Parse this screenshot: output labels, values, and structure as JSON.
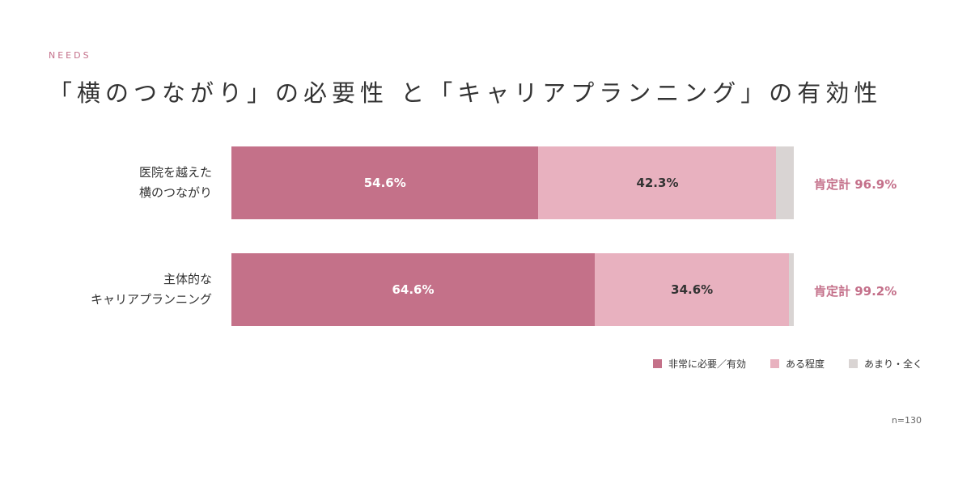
{
  "header": {
    "eyebrow": "NEEDS",
    "title": "「横のつながり」の必要性 と「キャリアプランニング」の有効性"
  },
  "colors": {
    "strong": "#c47189",
    "some": "#e8b1bf",
    "none": "#d9d4d3",
    "accent": "#c4708a"
  },
  "chart_data": {
    "type": "bar",
    "orientation": "horizontal",
    "stacked": true,
    "categories": [
      [
        "医院を越えた",
        "横のつながり"
      ],
      [
        "主体的な",
        "キャリアプランニング"
      ]
    ],
    "series": [
      {
        "name": "非常に必要／有効",
        "values": [
          54.6,
          64.6
        ],
        "labels": [
          "54.6%",
          "64.6%"
        ]
      },
      {
        "name": "ある程度",
        "values": [
          42.3,
          34.6
        ],
        "labels": [
          "42.3%",
          "34.6%"
        ]
      },
      {
        "name": "あまり・全く",
        "values": [
          3.1,
          0.8
        ],
        "labels": [
          "",
          ""
        ]
      }
    ],
    "totals": [
      "肯定計 96.9%",
      "肯定計 99.2%"
    ],
    "xlim": [
      0,
      100
    ],
    "legend": "bottom-right",
    "sample_size": "n=130"
  }
}
